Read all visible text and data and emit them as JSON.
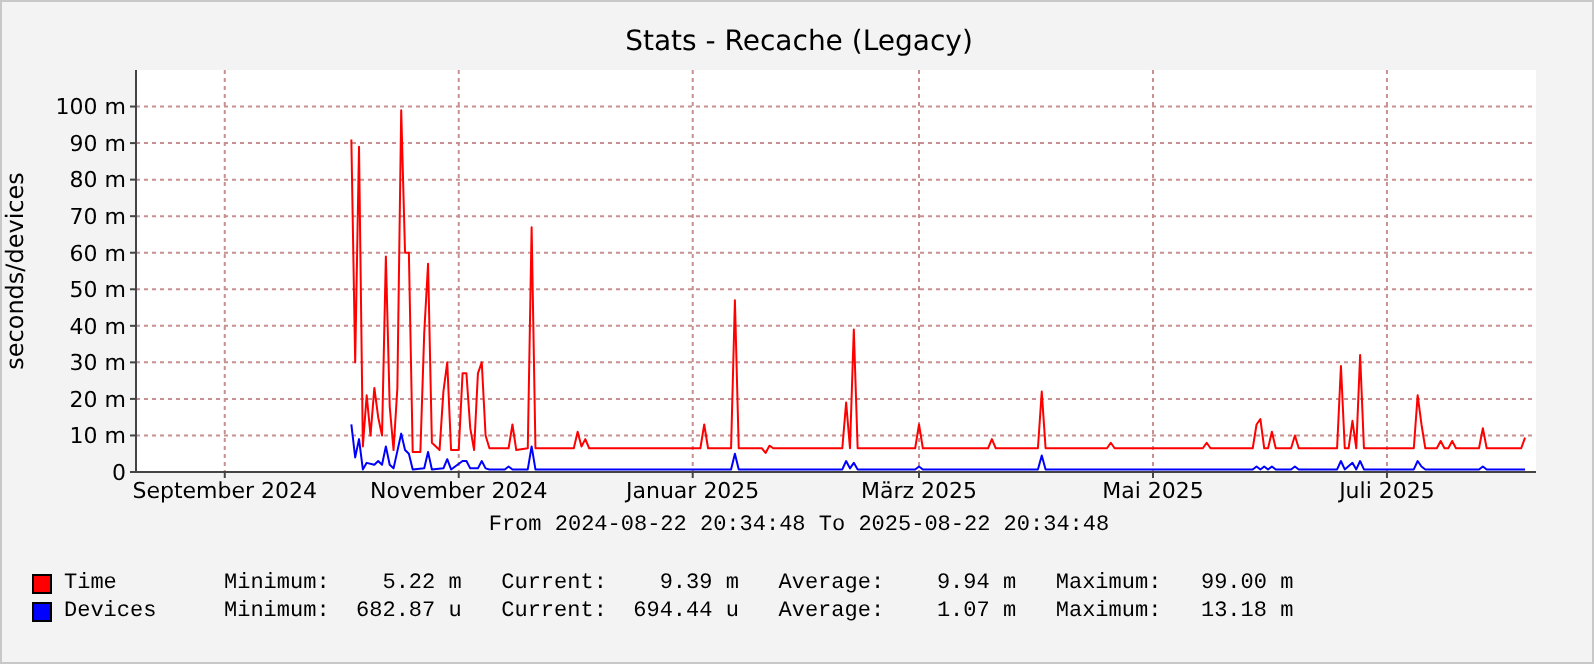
{
  "chart_data": {
    "type": "line",
    "title": "Stats - Recache (Legacy)",
    "ylabel": "seconds/devices",
    "annotations": [
      "From 2024-08-22 20:34:48 To 2025-08-22 20:34:48",
      "Minimum:    5.22 m   Current:    9.39 m   Average:    9.94 m   Maximum:   99.00 m",
      "Minimum:  682.87 u   Current:  694.44 u   Average:    1.07 m   Maximum:   13.18 m"
    ],
    "xlim": [
      "2024-08-22T20:34",
      "2025-08-22T20:34"
    ],
    "xticks": [
      {
        "value": "2024-09-15",
        "label": "September 2024"
      },
      {
        "value": "2024-11-15",
        "label": "November 2024"
      },
      {
        "value": "2025-01-15",
        "label": "Januar 2025"
      },
      {
        "value": "2025-03-15",
        "label": "März 2025"
      },
      {
        "value": "2025-05-15",
        "label": "Mai 2025"
      },
      {
        "value": "2025-07-15",
        "label": "Juli 2025"
      }
    ],
    "ylim": [
      0,
      110
    ],
    "yticks": [
      0,
      {
        "value": 10,
        "label": "10 m"
      },
      {
        "value": 20,
        "label": "20 m"
      },
      {
        "value": 30,
        "label": "30 m"
      },
      {
        "value": 40,
        "label": "40 m"
      },
      {
        "value": 50,
        "label": "50 m"
      },
      {
        "value": 60,
        "label": "60 m"
      },
      {
        "value": 70,
        "label": "70 m"
      },
      {
        "value": 80,
        "label": "80 m"
      },
      {
        "value": 90,
        "label": "90 m"
      },
      {
        "value": 100,
        "label": "100 m"
      }
    ],
    "grid": true,
    "legend": "bottom",
    "marker": "none",
    "line_style": "solid",
    "series": [
      {
        "name": "Time",
        "color": "#ff0000",
        "x": [
          "2024-10-18",
          "2024-10-19",
          "2024-10-20",
          "2024-10-21",
          "2024-10-22",
          "2024-10-23",
          "2024-10-24",
          "2024-10-25",
          "2024-10-26",
          "2024-10-27",
          "2024-10-28",
          "2024-10-29",
          "2024-10-30",
          "2024-10-31",
          "2024-11-01",
          "2024-11-02",
          "2024-11-03",
          "2024-11-05",
          "2024-11-06",
          "2024-11-07",
          "2024-11-08",
          "2024-11-10",
          "2024-11-11",
          "2024-11-12",
          "2024-11-13",
          "2024-11-15",
          "2024-11-16",
          "2024-11-17",
          "2024-11-18",
          "2024-11-19",
          "2024-11-20",
          "2024-11-21",
          "2024-11-22",
          "2024-11-23",
          "2024-11-28",
          "2024-11-29",
          "2024-11-30",
          "2024-12-03",
          "2024-12-04",
          "2024-12-05",
          "2024-12-15",
          "2024-12-16",
          "2024-12-17",
          "2024-12-18",
          "2024-12-19",
          "2025-01-17",
          "2025-01-18",
          "2025-01-19",
          "2025-01-25",
          "2025-01-26",
          "2025-01-27",
          "2025-02-02",
          "2025-02-03",
          "2025-02-04",
          "2025-02-05",
          "2025-02-23",
          "2025-02-24",
          "2025-02-25",
          "2025-02-26",
          "2025-02-27",
          "2025-03-14",
          "2025-03-15",
          "2025-03-16",
          "2025-04-02",
          "2025-04-03",
          "2025-04-04",
          "2025-04-15",
          "2025-04-16",
          "2025-04-17",
          "2025-05-03",
          "2025-05-04",
          "2025-05-05",
          "2025-05-28",
          "2025-05-29",
          "2025-05-30",
          "2025-06-10",
          "2025-06-11",
          "2025-06-12",
          "2025-06-13",
          "2025-06-14",
          "2025-06-15",
          "2025-06-16",
          "2025-06-20",
          "2025-06-21",
          "2025-06-22",
          "2025-07-02",
          "2025-07-03",
          "2025-07-04",
          "2025-07-05",
          "2025-07-06",
          "2025-07-07",
          "2025-07-08",
          "2025-07-09",
          "2025-07-22",
          "2025-07-23",
          "2025-07-24",
          "2025-07-25",
          "2025-07-28",
          "2025-07-29",
          "2025-07-30",
          "2025-07-31",
          "2025-08-01",
          "2025-08-02",
          "2025-08-08",
          "2025-08-09",
          "2025-08-10",
          "2025-08-19",
          "2025-08-20"
        ],
        "values": [
          91,
          30,
          89,
          7,
          21,
          10,
          23,
          15,
          10,
          59,
          18,
          6,
          23,
          99,
          60,
          60,
          5.5,
          5.5,
          38,
          57,
          8,
          6,
          22,
          30,
          6,
          6,
          27,
          27,
          12,
          6,
          27,
          30,
          10,
          6.5,
          6.5,
          13,
          6,
          6.5,
          67,
          6.5,
          6.5,
          11,
          7,
          9,
          6.5,
          6.5,
          13,
          6.5,
          6.5,
          47,
          6.5,
          6.5,
          5.2,
          7.2,
          6.5,
          6.5,
          19,
          6.5,
          39,
          6.5,
          6.5,
          13,
          6.5,
          6.5,
          9,
          6.5,
          6.5,
          22,
          6.5,
          6.5,
          8,
          6.5,
          6.5,
          8,
          6.5,
          6.5,
          13,
          14.5,
          6.5,
          6.5,
          11,
          6.5,
          6.5,
          10,
          6.5,
          6.5,
          29,
          6.5,
          6.5,
          14,
          6.5,
          32,
          6.5,
          6.5,
          21,
          13,
          6.5,
          6.5,
          8.5,
          6.5,
          6.5,
          8.5,
          6.5,
          6.5,
          12,
          6.5,
          6.5,
          9.4
        ]
      },
      {
        "name": "Devices",
        "color": "#0000ff",
        "x": [
          "2024-10-18",
          "2024-10-19",
          "2024-10-20",
          "2024-10-21",
          "2024-10-22",
          "2024-10-24",
          "2024-10-25",
          "2024-10-26",
          "2024-10-27",
          "2024-10-28",
          "2024-10-29",
          "2024-10-31",
          "2024-11-01",
          "2024-11-02",
          "2024-11-03",
          "2024-11-06",
          "2024-11-07",
          "2024-11-08",
          "2024-11-11",
          "2024-11-12",
          "2024-11-13",
          "2024-11-16",
          "2024-11-17",
          "2024-11-18",
          "2024-11-20",
          "2024-11-21",
          "2024-11-22",
          "2024-11-23",
          "2024-11-27",
          "2024-11-28",
          "2024-11-29",
          "2024-12-03",
          "2024-12-04",
          "2024-12-05",
          "2025-01-25",
          "2025-01-26",
          "2025-01-27",
          "2025-02-23",
          "2025-02-24",
          "2025-02-25",
          "2025-02-26",
          "2025-02-27",
          "2025-03-14",
          "2025-03-15",
          "2025-03-16",
          "2025-04-15",
          "2025-04-16",
          "2025-04-17",
          "2025-06-10",
          "2025-06-11",
          "2025-06-12",
          "2025-06-13",
          "2025-06-14",
          "2025-06-15",
          "2025-06-16",
          "2025-06-20",
          "2025-06-21",
          "2025-06-22",
          "2025-07-02",
          "2025-07-03",
          "2025-07-04",
          "2025-07-06",
          "2025-07-07",
          "2025-07-08",
          "2025-07-09",
          "2025-07-22",
          "2025-07-23",
          "2025-07-24",
          "2025-07-25",
          "2025-08-08",
          "2025-08-09",
          "2025-08-10",
          "2025-08-20"
        ],
        "values": [
          13,
          4,
          9,
          0.7,
          2.5,
          2,
          3,
          2,
          7,
          2,
          1,
          10.5,
          6,
          5,
          0.7,
          1,
          5.5,
          0.7,
          1,
          3.5,
          0.7,
          3,
          3,
          1,
          1,
          3,
          1,
          0.7,
          0.7,
          1.5,
          0.7,
          0.7,
          7,
          0.7,
          0.7,
          5,
          0.7,
          0.7,
          3,
          1,
          2.5,
          0.7,
          0.7,
          1.5,
          0.7,
          0.7,
          4.5,
          0.7,
          0.7,
          1.5,
          0.7,
          1.5,
          0.7,
          1.5,
          0.7,
          0.7,
          1.5,
          0.7,
          0.7,
          3,
          0.7,
          2.5,
          0.7,
          3,
          0.7,
          0.7,
          3,
          1.5,
          0.7,
          0.7,
          1.5,
          0.7,
          0.7
        ]
      }
    ]
  }
}
